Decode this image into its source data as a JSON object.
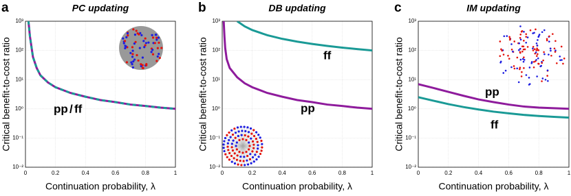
{
  "chart_data": [
    {
      "type": "line",
      "panel_label": "a",
      "title": "PC updating",
      "xlabel": "Continuation probability, λ",
      "ylabel": "Critical benefit-to-cost ratio",
      "xlim": [
        0,
        1
      ],
      "ylim": [
        0.01,
        1000
      ],
      "log_y": true,
      "grid": true,
      "xticks": [
        0,
        0.2,
        0.4,
        0.6,
        0.8,
        1
      ],
      "yticks": [
        {
          "value": 0.01,
          "label": "10⁻²"
        },
        {
          "value": 0.1,
          "label": "10⁻¹"
        },
        {
          "value": 1,
          "label": "10⁰"
        },
        {
          "value": 10,
          "label": "10¹"
        },
        {
          "value": 100,
          "label": "10²"
        },
        {
          "value": 1000,
          "label": "10³"
        }
      ],
      "series": [
        {
          "name": "pp",
          "color": "#8e1b9c",
          "dashed": false,
          "x": [
            0.02,
            0.03,
            0.05,
            0.075,
            0.1,
            0.15,
            0.2,
            0.3,
            0.4,
            0.5,
            0.6,
            0.7,
            0.8,
            0.9,
            1
          ],
          "values": [
            1000,
            300,
            60,
            25,
            14,
            8,
            5.5,
            3.5,
            2.6,
            2,
            1.7,
            1.4,
            1.25,
            1.1,
            1
          ]
        },
        {
          "name": "ff",
          "color": "#1a9a96",
          "dashed": true,
          "x": [
            0.02,
            0.03,
            0.05,
            0.075,
            0.1,
            0.15,
            0.2,
            0.3,
            0.4,
            0.5,
            0.6,
            0.7,
            0.8,
            0.9,
            1
          ],
          "values": [
            1000,
            300,
            60,
            25,
            14,
            8,
            5.5,
            3.5,
            2.6,
            2,
            1.7,
            1.4,
            1.25,
            1.1,
            1
          ]
        }
      ],
      "annotations": [
        {
          "text": "pp",
          "color": "#8e1b9c"
        },
        {
          "text": "/",
          "color": "#000000"
        },
        {
          "text": "ff",
          "color": "#1a9a96"
        }
      ]
    },
    {
      "type": "line",
      "panel_label": "b",
      "title": "DB updating",
      "xlabel": "Continuation probability, λ",
      "ylabel": "Critical benefit-to-cost ratio",
      "xlim": [
        0,
        1
      ],
      "ylim": [
        0.01,
        1000
      ],
      "log_y": true,
      "grid": true,
      "xticks": [
        0,
        0.2,
        0.4,
        0.6,
        0.8,
        1
      ],
      "yticks": [
        {
          "value": 0.01,
          "label": "10⁻²"
        },
        {
          "value": 0.1,
          "label": "10⁻¹"
        },
        {
          "value": 1,
          "label": "10⁰"
        },
        {
          "value": 10,
          "label": "10¹"
        },
        {
          "value": 100,
          "label": "10²"
        },
        {
          "value": 1000,
          "label": "10³"
        }
      ],
      "series": [
        {
          "name": "ff",
          "color": "#1a9a96",
          "dashed": false,
          "x": [
            0.1,
            0.15,
            0.2,
            0.3,
            0.4,
            0.5,
            0.6,
            0.7,
            0.8,
            0.9,
            1
          ],
          "values": [
            1000,
            667,
            500,
            333,
            250,
            200,
            167,
            143,
            125,
            111,
            100
          ]
        },
        {
          "name": "pp",
          "color": "#8e1b9c",
          "dashed": false,
          "x": [
            0.01,
            0.015,
            0.02,
            0.03,
            0.05,
            0.1,
            0.15,
            0.2,
            0.3,
            0.4,
            0.5,
            0.6,
            0.7,
            0.8,
            0.9,
            1
          ],
          "values": [
            1000,
            300,
            120,
            50,
            25,
            12,
            7.5,
            5.5,
            3.5,
            2.6,
            2,
            1.7,
            1.4,
            1.25,
            1.1,
            1
          ]
        }
      ],
      "annotations": [
        {
          "text": "ff",
          "color": "#1a9a96"
        },
        {
          "text": "pp",
          "color": "#8e1b9c"
        }
      ]
    },
    {
      "type": "line",
      "panel_label": "c",
      "title": "IM updating",
      "xlabel": "Continuation probability, λ",
      "ylabel": "Critical benefit-to-cost ratio",
      "xlim": [
        0,
        1
      ],
      "ylim": [
        0.01,
        1000
      ],
      "log_y": true,
      "grid": true,
      "xticks": [
        0,
        0.2,
        0.4,
        0.6,
        0.8,
        1
      ],
      "yticks": [
        {
          "value": 0.01,
          "label": "10⁻²"
        },
        {
          "value": 0.1,
          "label": "10⁻¹"
        },
        {
          "value": 1,
          "label": "10⁰"
        },
        {
          "value": 10,
          "label": "10¹"
        },
        {
          "value": 100,
          "label": "10²"
        },
        {
          "value": 1000,
          "label": "10³"
        }
      ],
      "series": [
        {
          "name": "pp",
          "color": "#8e1b9c",
          "dashed": false,
          "x": [
            0,
            0.1,
            0.2,
            0.3,
            0.4,
            0.5,
            0.6,
            0.7,
            0.8,
            0.9,
            1
          ],
          "values": [
            7,
            5.2,
            3.8,
            2.8,
            2.1,
            1.7,
            1.4,
            1.2,
            1.1,
            1.05,
            1
          ]
        },
        {
          "name": "ff",
          "color": "#1a9a96",
          "dashed": false,
          "x": [
            0,
            0.1,
            0.2,
            0.3,
            0.4,
            0.5,
            0.6,
            0.7,
            0.8,
            0.9,
            1
          ],
          "values": [
            2.5,
            1.9,
            1.45,
            1.15,
            0.95,
            0.8,
            0.7,
            0.62,
            0.57,
            0.53,
            0.5
          ]
        }
      ],
      "annotations": [
        {
          "text": "pp",
          "color": "#8e1b9c"
        },
        {
          "text": "ff",
          "color": "#1a9a96"
        }
      ]
    }
  ]
}
